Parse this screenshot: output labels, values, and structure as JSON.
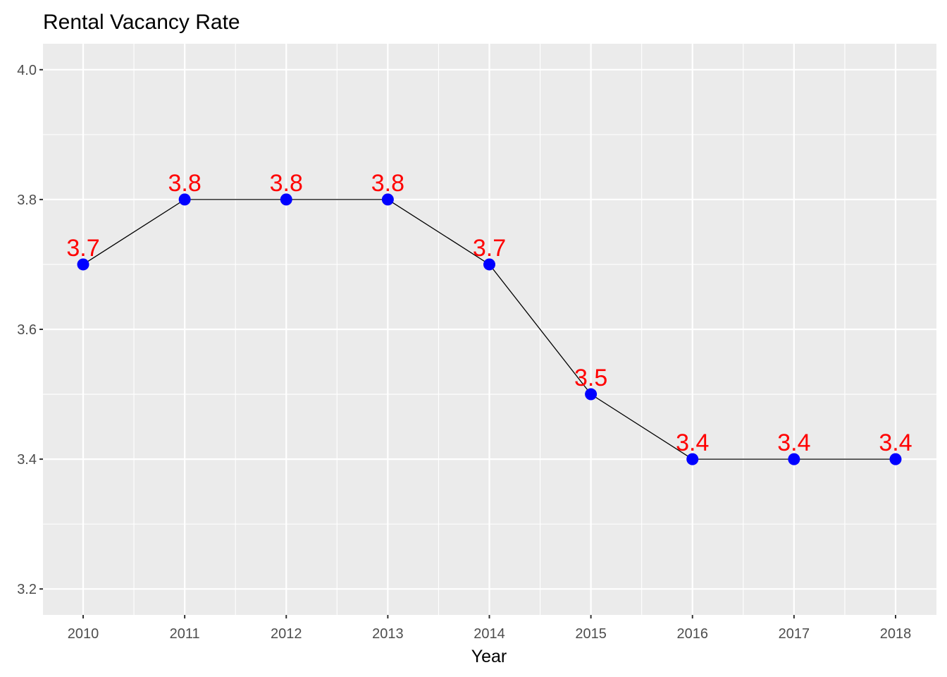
{
  "chart_data": {
    "type": "line",
    "title": "Rental Vacancy Rate",
    "xlabel": "Year",
    "ylabel": "",
    "x": [
      "2010",
      "2011",
      "2012",
      "2013",
      "2014",
      "2015",
      "2016",
      "2017",
      "2018"
    ],
    "series": [
      {
        "values": [
          3.7,
          3.8,
          3.8,
          3.8,
          3.7,
          3.5,
          3.4,
          3.4,
          3.4
        ]
      }
    ],
    "data_labels": [
      "3.7",
      "3.8",
      "3.8",
      "3.8",
      "3.7",
      "3.5",
      "3.4",
      "3.4",
      "3.4"
    ],
    "y_ticks": [
      3.2,
      3.4,
      3.6,
      3.8,
      4.0
    ],
    "y_tick_labels": [
      "3.2",
      "3.4",
      "3.6",
      "3.8",
      "4.0"
    ],
    "ylim": [
      3.16,
      4.04
    ],
    "grid": true,
    "legend": "none",
    "colors": {
      "panel_background": "#ebebeb",
      "grid": "#ffffff",
      "line": "#000000",
      "point": "#0000ff",
      "data_label": "#ff0000",
      "tick_label": "#4d4d4d"
    }
  }
}
